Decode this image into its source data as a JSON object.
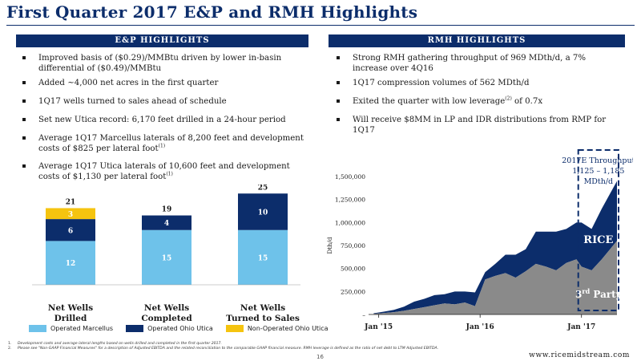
{
  "slide": {
    "title": "First Quarter 2017 E&P and RMH Highlights",
    "page_number": "16",
    "website": "www.ricemidstream.com",
    "colors": {
      "navy": "#0c2d6b",
      "light_blue": "#6ec2ea",
      "yellow": "#f5c40f",
      "gray": "#8a8a8a"
    }
  },
  "ep": {
    "header": "E&P HIGHLIGHTS",
    "bullets": [
      {
        "text": "Improved basis of ($0.29)/MMBtu driven by lower in-basin differential of ($0.49)/MMBtu",
        "sup": ""
      },
      {
        "text": "Added ~4,000 net acres in the first quarter",
        "sup": ""
      },
      {
        "text": "1Q17 wells turned to sales ahead of schedule",
        "sup": ""
      },
      {
        "text": "Set new Utica record: 6,170 feet drilled in a 24-hour period",
        "sup": ""
      },
      {
        "text": "Average 1Q17 Marcellus laterals of 8,200 feet and development costs of $825 per lateral foot",
        "sup": "(1)"
      },
      {
        "text": "Average 1Q17 Utica laterals of 10,600 feet and development costs of $1,130 per lateral foot",
        "sup": "(1)"
      }
    ]
  },
  "rmh": {
    "header": "RMH HIGHLIGHTS",
    "bullets": [
      {
        "pre": "Strong RMH gathering throughput of 969 MDth/d, a 7% increase over 4Q16",
        "sup": "",
        "post": ""
      },
      {
        "pre": "1Q17 compression volumes of 562 MDth/d",
        "sup": "",
        "post": ""
      },
      {
        "pre": "Exited the quarter with low leverage",
        "sup": "(2)",
        "post": " of 0.7x"
      },
      {
        "pre": "Will receive $8MM in LP and IDR distributions from RMP for 1Q17",
        "sup": "",
        "post": ""
      }
    ]
  },
  "chart_data": [
    {
      "type": "bar",
      "stacked": true,
      "categories": [
        "Net Wells Drilled",
        "Net Wells Completed",
        "Net Wells Turned to Sales"
      ],
      "category_lines": [
        [
          "Net Wells",
          "Drilled"
        ],
        [
          "Net Wells",
          "Completed"
        ],
        [
          "Net Wells",
          "Turned to Sales"
        ]
      ],
      "series": [
        {
          "name": "Operated Marcellus",
          "values": [
            12,
            15,
            15
          ],
          "color": "#6ec2ea"
        },
        {
          "name": "Operated Ohio Utica",
          "values": [
            6,
            4,
            10
          ],
          "color": "#0c2d6b"
        },
        {
          "name": "Non-Operated Ohio Utica",
          "values": [
            3,
            0,
            0
          ],
          "color": "#f5c40f"
        }
      ],
      "totals": [
        21,
        19,
        25
      ],
      "ylim": [
        0,
        25
      ]
    },
    {
      "type": "area",
      "stacked": true,
      "ylabel": "Dth/d",
      "ylim": [
        0,
        1500000
      ],
      "yticks": [
        0,
        250000,
        500000,
        750000,
        1000000,
        1250000,
        1500000
      ],
      "ytick_labels": [
        "–",
        "250,000",
        "500,000",
        "750,000",
        "1,000,000",
        "1,250,000",
        "1,500,000"
      ],
      "xlim": [
        2014.9,
        2017.35
      ],
      "xticks": [
        2015.0,
        2016.0,
        2017.0
      ],
      "xtick_labels": [
        "Jan '15",
        "Jan '16",
        "Jan '17"
      ],
      "x": [
        2014.95,
        2015.05,
        2015.15,
        2015.25,
        2015.35,
        2015.45,
        2015.55,
        2015.65,
        2015.75,
        2015.85,
        2015.95,
        2016.05,
        2016.15,
        2016.25,
        2016.35,
        2016.45,
        2016.55,
        2016.65,
        2016.75,
        2016.85,
        2016.95,
        2017.0,
        2017.1,
        2017.2,
        2017.35
      ],
      "series": [
        {
          "name": "3rd Party",
          "color": "#8a8a8a",
          "values": [
            8000,
            15000,
            25000,
            40000,
            60000,
            80000,
            100000,
            120000,
            110000,
            130000,
            90000,
            380000,
            420000,
            450000,
            400000,
            470000,
            550000,
            520000,
            480000,
            560000,
            600000,
            520000,
            480000,
            600000,
            800000
          ]
        },
        {
          "name": "RICE",
          "color": "#0c2d6b",
          "values": [
            5000,
            15000,
            25000,
            45000,
            80000,
            90000,
            110000,
            100000,
            140000,
            120000,
            150000,
            80000,
            130000,
            200000,
            250000,
            240000,
            350000,
            380000,
            420000,
            370000,
            400000,
            480000,
            450000,
            550000,
            650000
          ]
        }
      ],
      "annotation": {
        "lines": [
          "2017E Throughput",
          "1,125 – 1,185",
          "MDth/d"
        ]
      },
      "series_labels": {
        "rice": "RICE",
        "third_party_main": "3",
        "third_party_sup": "rd",
        "third_party_tail": " Party"
      }
    }
  ],
  "footnotes": [
    {
      "num": "1.",
      "text": "Development costs and average lateral lengths based on wells drilled and completed in the first quarter 2017."
    },
    {
      "num": "2.",
      "text": "Please see \"Non-GAAP Financial Measures\" for a description of Adjusted EBITDA and the related reconciliation to the comparable GAAP financial measure. RMH leverage is defined as the ratio of net debt to LTM Adjusted EBITDA."
    }
  ]
}
